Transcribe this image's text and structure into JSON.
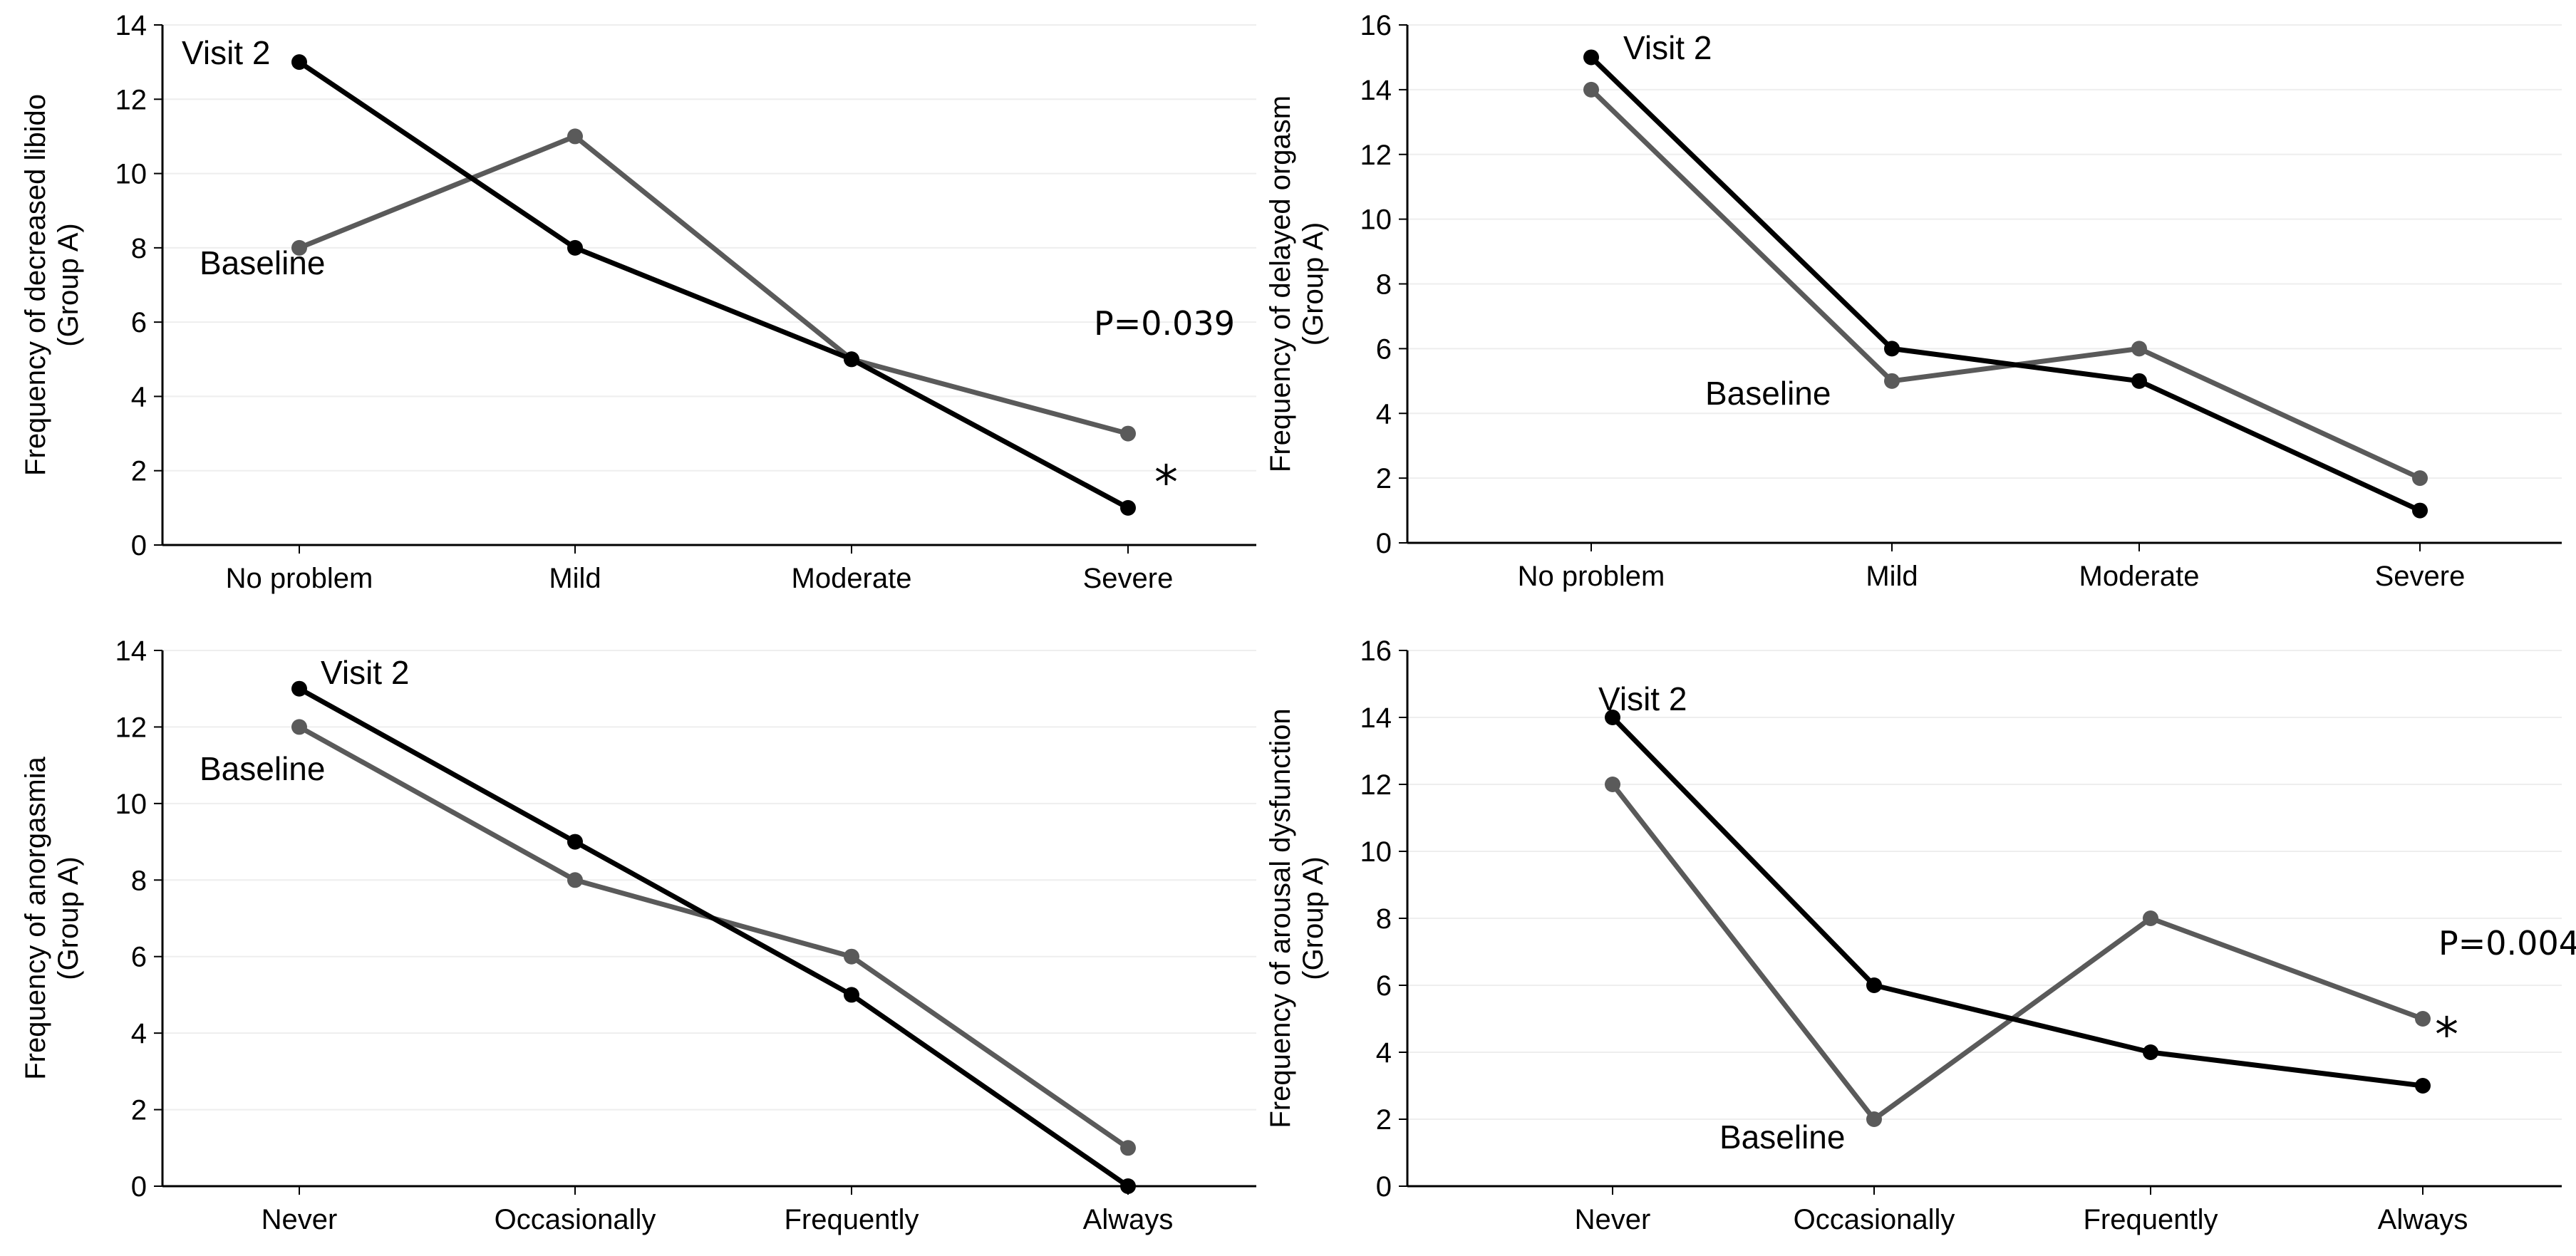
{
  "colors": {
    "baseline": "#5a5a5a",
    "visit2": "#000000",
    "grid": "#eeeeee",
    "axis": "#000000"
  },
  "chart_data": [
    {
      "type": "line",
      "id": "libido",
      "title": "",
      "ylabel": [
        "Frequency of decreased libido",
        "(Group A)"
      ],
      "xlabel": "",
      "categories": [
        "No problem",
        "Mild",
        "Moderate",
        "Severe"
      ],
      "ylim": [
        0,
        14
      ],
      "yticks": [
        "0",
        "2",
        "4",
        "6",
        "8",
        "10",
        "12",
        "14"
      ],
      "series": [
        {
          "name": "Baseline",
          "key": "baseline",
          "values": [
            8,
            11,
            5,
            3
          ]
        },
        {
          "name": "Visit 2",
          "key": "visit2",
          "values": [
            13,
            8,
            5,
            1
          ]
        }
      ],
      "annotations": {
        "p_value": "P=0.039",
        "significance": "*"
      }
    },
    {
      "type": "line",
      "id": "orgasm",
      "title": "",
      "ylabel": [
        "Frequency of delayed orgasm",
        "(Group A)"
      ],
      "xlabel": "",
      "categories": [
        "No problem",
        "Mild",
        "Moderate",
        "Severe"
      ],
      "ylim": [
        0,
        16
      ],
      "yticks": [
        "0",
        "2",
        "4",
        "6",
        "8",
        "10",
        "12",
        "14",
        "16"
      ],
      "series": [
        {
          "name": "Baseline",
          "key": "baseline",
          "values": [
            14,
            5,
            6,
            2
          ]
        },
        {
          "name": "Visit 2",
          "key": "visit2",
          "values": [
            15,
            6,
            5,
            1
          ]
        }
      ],
      "annotations": {}
    },
    {
      "type": "line",
      "id": "anorgasmia",
      "title": "",
      "ylabel": [
        "Frequency of anorgasmia",
        "(Group A)"
      ],
      "xlabel": "",
      "categories": [
        "Never",
        "Occasionally",
        "Frequently",
        "Always"
      ],
      "ylim": [
        0,
        14
      ],
      "yticks": [
        "0",
        "2",
        "4",
        "6",
        "8",
        "10",
        "12",
        "14"
      ],
      "series": [
        {
          "name": "Baseline",
          "key": "baseline",
          "values": [
            12,
            8,
            6,
            1
          ]
        },
        {
          "name": "Visit 2",
          "key": "visit2",
          "values": [
            13,
            9,
            5,
            0
          ]
        }
      ],
      "annotations": {}
    },
    {
      "type": "line",
      "id": "arousal",
      "title": "",
      "ylabel": [
        "Frequency of arousal dysfunction",
        "(Group A)"
      ],
      "xlabel": "",
      "categories": [
        "Never",
        "Occasionally",
        "Frequently",
        "Always"
      ],
      "ylim": [
        0,
        16
      ],
      "yticks": [
        "0",
        "2",
        "4",
        "6",
        "8",
        "10",
        "12",
        "14",
        "16"
      ],
      "series": [
        {
          "name": "Baseline",
          "key": "baseline",
          "values": [
            12,
            2,
            8,
            5
          ]
        },
        {
          "name": "Visit 2",
          "key": "visit2",
          "values": [
            14,
            6,
            4,
            3
          ]
        }
      ],
      "annotations": {
        "p_value": "P=0.004",
        "significance": "*"
      }
    }
  ]
}
